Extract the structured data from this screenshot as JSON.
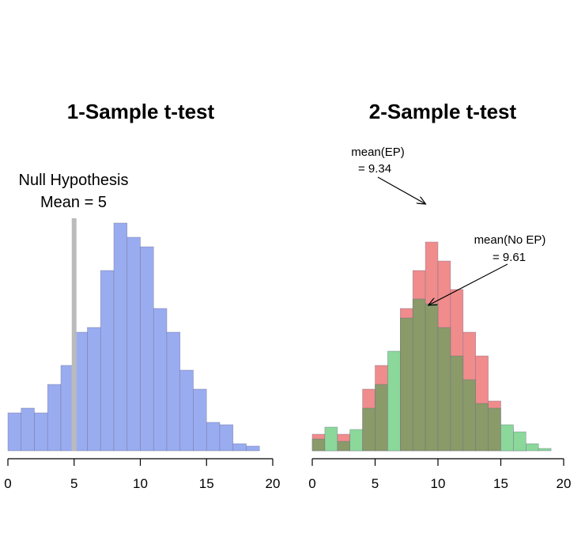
{
  "chart_data": [
    {
      "type": "bar",
      "title": "1-Sample t-test",
      "xlim": [
        0,
        20
      ],
      "ylim": [
        0,
        60
      ],
      "x_ticks": [
        "0",
        "5",
        "10",
        "15",
        "20"
      ],
      "bin_width": 1,
      "bin_starts": [
        0,
        1,
        2,
        3,
        4,
        5,
        6,
        7,
        8,
        9,
        10,
        11,
        12,
        13,
        14,
        15,
        16,
        17,
        18
      ],
      "series": [
        {
          "values": [
            8,
            9,
            8,
            14,
            18,
            25,
            26,
            38,
            48,
            45,
            43,
            30,
            25,
            17,
            13,
            6,
            5.5,
            1.5,
            1
          ],
          "color": "#9aacf0"
        }
      ],
      "reference_line": {
        "x": 5,
        "color": "#bbbbbb"
      },
      "annotations": [
        {
          "text_lines": [
            "Null Hypothesis",
            "Mean = 5"
          ]
        }
      ]
    },
    {
      "type": "bar",
      "title": "2-Sample t-test",
      "xlim": [
        0,
        20
      ],
      "ylim": [
        0,
        60
      ],
      "x_ticks": [
        "0",
        "5",
        "10",
        "15",
        "20"
      ],
      "bin_width": 1,
      "bin_starts": [
        0,
        1,
        2,
        3,
        4,
        5,
        6,
        7,
        8,
        9,
        10,
        11,
        12,
        13,
        14,
        15,
        16,
        17,
        18
      ],
      "series": [
        {
          "values": [
            3.5,
            3,
            3.5,
            4,
            13,
            18,
            18,
            30,
            38,
            44,
            40,
            34,
            25,
            20,
            10.5,
            5,
            1,
            0,
            0
          ],
          "color": "#f08c8c"
        },
        {
          "values": [
            2.5,
            5,
            2,
            4.5,
            9,
            14,
            21,
            28,
            32,
            31,
            26,
            20,
            15,
            10,
            9,
            5.5,
            4,
            1.5,
            0.5
          ],
          "color": "#8a9a68",
          "overflow_color": "#8bd89a"
        }
      ],
      "annotations": [
        {
          "text_lines": [
            "mean(EP)",
            "= 9.34"
          ],
          "points_to_x": 9.34
        },
        {
          "text_lines": [
            "mean(No EP)",
            "= 9.61"
          ],
          "points_to_x": 9.61
        }
      ]
    }
  ]
}
